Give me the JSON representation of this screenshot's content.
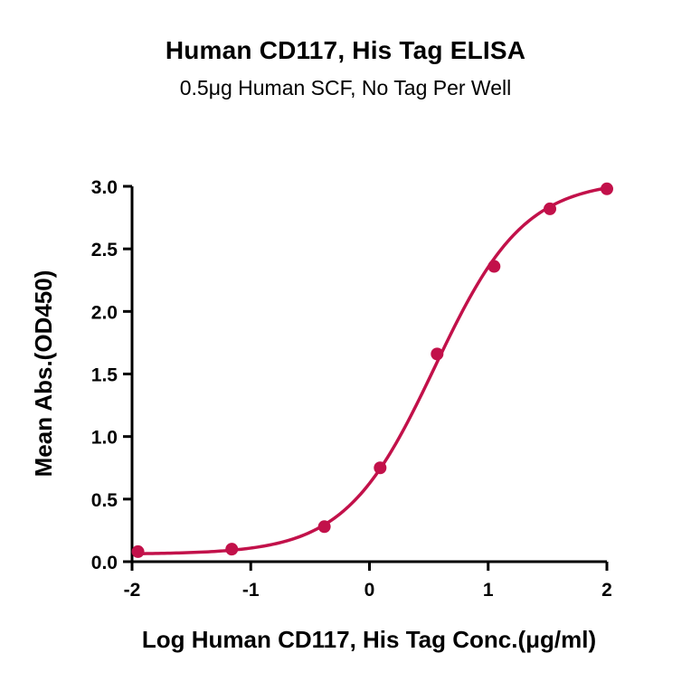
{
  "header": {
    "title": "Human CD117, His Tag ELISA",
    "subtitle": "0.5μg Human SCF, No Tag Per Well"
  },
  "chart_data": {
    "type": "scatter",
    "title": "Human CD117, His Tag ELISA",
    "subtitle": "0.5μg Human SCF, No Tag Per Well",
    "xlabel": "Log Human CD117, His Tag Conc.(μg/ml)",
    "ylabel": "Mean Abs.(OD450)",
    "xlim": [
      -2,
      2
    ],
    "ylim": [
      0,
      3.0
    ],
    "x_ticks": [
      -2,
      -1,
      0,
      1,
      2
    ],
    "y_ticks": [
      0.0,
      0.5,
      1.0,
      1.5,
      2.0,
      2.5,
      3.0
    ],
    "points": [
      {
        "x": -1.95,
        "y": 0.08
      },
      {
        "x": -1.16,
        "y": 0.1
      },
      {
        "x": -0.38,
        "y": 0.28
      },
      {
        "x": 0.09,
        "y": 0.75
      },
      {
        "x": 0.57,
        "y": 1.66
      },
      {
        "x": 1.05,
        "y": 2.36
      },
      {
        "x": 1.52,
        "y": 2.82
      },
      {
        "x": 2.0,
        "y": 2.98
      }
    ],
    "fit": {
      "model": "four-parameter-logistic",
      "bottom": 0.06,
      "top": 3.05,
      "logEC50": 0.55,
      "hill": 1.15
    },
    "color": "#C2114A",
    "axis_color": "#000000",
    "grid": false,
    "legend": false
  }
}
